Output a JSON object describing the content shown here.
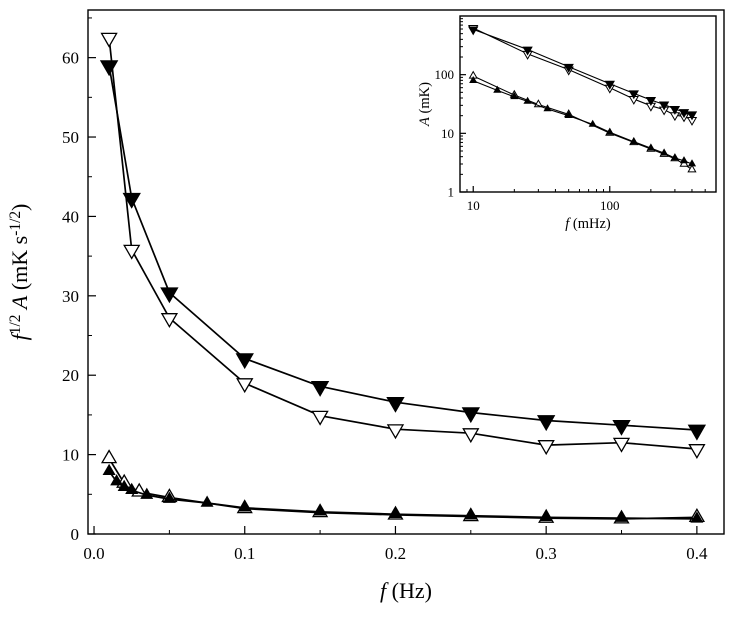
{
  "figure": {
    "background": "#ffffff",
    "line_color": "#000000"
  },
  "chart_data": [
    {
      "id": "main",
      "type": "line",
      "title": "",
      "xlabel": "*f* (Hz)",
      "ylabel": "*f*^{1/2} *A* (mK s^{-1/2})",
      "xscale": "linear",
      "yscale": "linear",
      "xlim": [
        -0.004,
        0.418
      ],
      "ylim": [
        0,
        66
      ],
      "grid": false,
      "legend": null,
      "xticks": {
        "values": [
          0,
          0.1,
          0.2,
          0.3,
          0.4
        ],
        "labels": [
          "0.0",
          "0.1",
          "0.2",
          "0.3",
          "0.4"
        ],
        "minor": [
          0.05,
          0.15,
          0.25,
          0.35
        ]
      },
      "yticks": {
        "values": [
          0,
          10,
          20,
          30,
          40,
          50,
          60
        ],
        "labels": [
          "0",
          "10",
          "20",
          "30",
          "40",
          "50",
          "60"
        ],
        "minor": [
          5,
          15,
          25,
          35,
          45,
          55,
          65
        ]
      },
      "series": [
        {
          "name": "open-down-triangle",
          "marker": "triangle-down",
          "filled": false,
          "size": 14,
          "x": [
            0.01,
            0.025,
            0.05,
            0.1,
            0.15,
            0.2,
            0.25,
            0.3,
            0.35,
            0.4
          ],
          "y": [
            62.5,
            35.8,
            27.2,
            19.0,
            14.9,
            13.2,
            12.7,
            11.2,
            11.5,
            10.7
          ]
        },
        {
          "name": "filled-down-triangle",
          "marker": "triangle-down",
          "filled": true,
          "size": 15,
          "x": [
            0.01,
            0.025,
            0.05,
            0.1,
            0.15,
            0.2,
            0.25,
            0.3,
            0.35,
            0.4
          ],
          "y": [
            59.0,
            42.3,
            30.4,
            22.1,
            18.6,
            16.6,
            15.3,
            14.3,
            13.7,
            13.1
          ]
        },
        {
          "name": "open-up-triangle",
          "marker": "triangle-up",
          "filled": false,
          "size": 13,
          "x": [
            0.01,
            0.02,
            0.03,
            0.05,
            0.1,
            0.15,
            0.2,
            0.25,
            0.3,
            0.35,
            0.4
          ],
          "y": [
            9.5,
            6.4,
            5.3,
            4.6,
            3.2,
            2.7,
            2.4,
            2.2,
            2.0,
            1.9,
            2.1
          ]
        },
        {
          "name": "filled-up-triangle",
          "marker": "triangle-up",
          "filled": true,
          "size": 10,
          "x": [
            0.01,
            0.015,
            0.02,
            0.025,
            0.035,
            0.05,
            0.075,
            0.1,
            0.15,
            0.2,
            0.25,
            0.3,
            0.35,
            0.4
          ],
          "y": [
            7.9,
            6.6,
            5.9,
            5.5,
            4.9,
            4.4,
            3.9,
            3.3,
            2.8,
            2.5,
            2.3,
            2.1,
            2.0,
            1.9
          ]
        }
      ]
    },
    {
      "id": "inset",
      "type": "line",
      "title": "",
      "xlabel": "*f* (mHz)",
      "ylabel": "*A* (mK)",
      "xscale": "log",
      "yscale": "log",
      "xlim": [
        8,
        600
      ],
      "ylim": [
        1,
        1000
      ],
      "grid": false,
      "legend": null,
      "xticks": {
        "values": [
          10,
          100
        ],
        "labels": [
          "10",
          "100"
        ],
        "minor": [
          9,
          20,
          30,
          40,
          50,
          60,
          70,
          80,
          90,
          200,
          300,
          400,
          500
        ]
      },
      "yticks": {
        "values": [
          1,
          10,
          100
        ],
        "labels": [
          "1",
          "10",
          "100"
        ],
        "minor": [
          2,
          3,
          4,
          5,
          6,
          7,
          8,
          9,
          20,
          30,
          40,
          50,
          60,
          70,
          80,
          90,
          200,
          300,
          400,
          500,
          600,
          700,
          800,
          900
        ]
      },
      "series": [
        {
          "name": "open-down-triangle",
          "marker": "triangle-down",
          "filled": false,
          "size": 8,
          "x": [
            10,
            25,
            50,
            100,
            150,
            200,
            250,
            300,
            350,
            400
          ],
          "y": [
            625,
            226,
            122,
            60,
            38.5,
            29.5,
            25.4,
            20.4,
            19.4,
            16.9
          ]
        },
        {
          "name": "filled-down-triangle",
          "marker": "triangle-down",
          "filled": true,
          "size": 8,
          "x": [
            10,
            25,
            50,
            100,
            150,
            200,
            250,
            300,
            350,
            400
          ],
          "y": [
            590,
            268,
            136,
            70,
            48,
            37,
            31,
            26,
            23,
            21
          ]
        },
        {
          "name": "open-up-triangle",
          "marker": "triangle-up",
          "filled": false,
          "size": 7,
          "x": [
            10,
            20,
            30,
            50,
            100,
            150,
            200,
            250,
            300,
            350,
            400
          ],
          "y": [
            95,
            45,
            31,
            21,
            10.1,
            7.0,
            5.4,
            4.4,
            3.7,
            3.0,
            2.4
          ]
        },
        {
          "name": "filled-up-triangle",
          "marker": "triangle-up",
          "filled": true,
          "size": 6,
          "x": [
            10,
            15,
            20,
            25,
            35,
            50,
            75,
            100,
            150,
            200,
            250,
            300,
            350,
            400
          ],
          "y": [
            79,
            54,
            42,
            35,
            26,
            20,
            14.2,
            10.4,
            7.2,
            5.6,
            4.6,
            3.8,
            3.4,
            3.0
          ]
        }
      ]
    }
  ]
}
